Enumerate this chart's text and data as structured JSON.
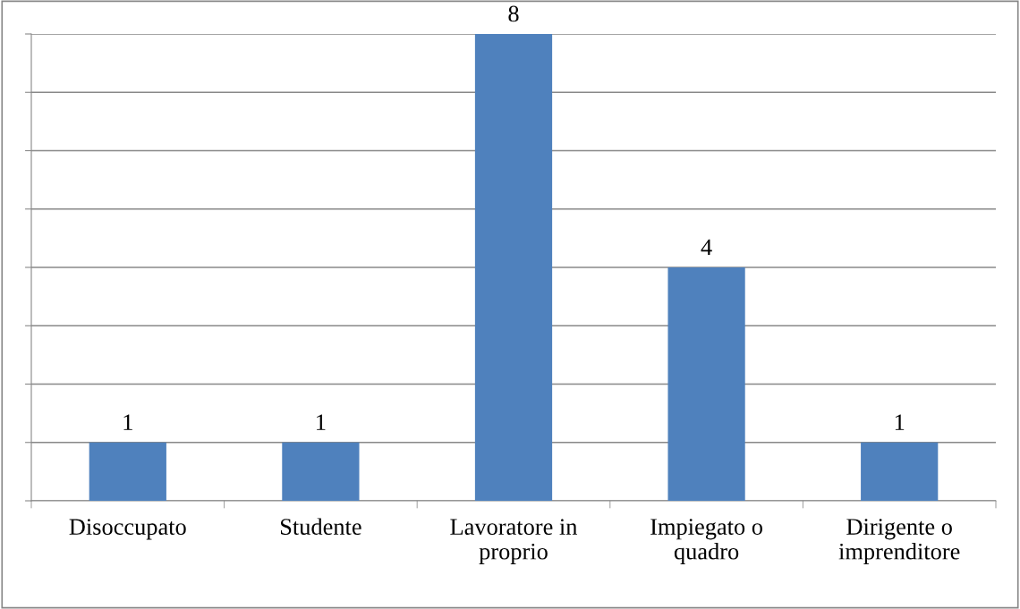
{
  "chart_data": {
    "type": "bar",
    "categories": [
      "Disoccupato",
      "Studente",
      "Lavoratore in\nproprio",
      "Impiegato o\nquadro",
      "Dirigente o\nimprenditore"
    ],
    "values": [
      1,
      1,
      8,
      4,
      1
    ],
    "color": "#4f81bd",
    "ylim": [
      0,
      8
    ],
    "yticks": [
      {
        "value": 0,
        "label": null
      },
      {
        "value": 1,
        "label": null
      },
      {
        "value": 2,
        "label": null
      },
      {
        "value": 3,
        "label": null
      },
      {
        "value": 4,
        "label": null
      },
      {
        "value": 5,
        "label": null
      },
      {
        "value": 6,
        "label": null
      },
      {
        "value": 7,
        "label": null
      },
      {
        "value": 8,
        "label": null
      }
    ],
    "tick_labels": "x",
    "grid": "y",
    "data_labels": true,
    "legend": false
  }
}
